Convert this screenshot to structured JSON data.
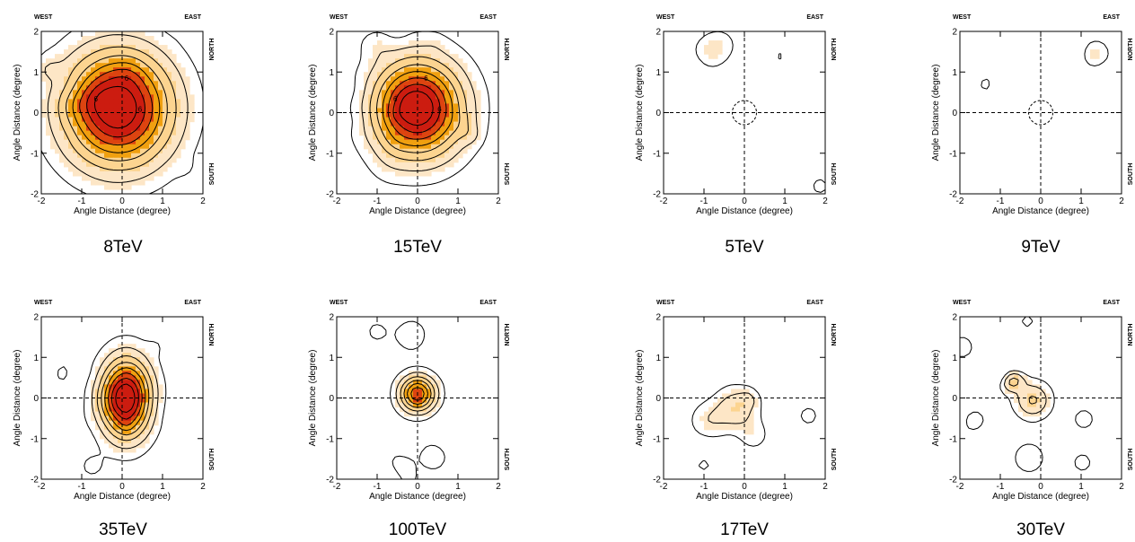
{
  "panel_text": {
    "west": "WEST",
    "east": "EAST",
    "north": "NORTH",
    "south": "SOUTH",
    "xlabel": "Angle Distance (degree)",
    "ylabel": "Angle Distance (degree)",
    "ticks": [
      "-2",
      "-1",
      "0",
      "1",
      "2"
    ]
  },
  "colors": {
    "dark_red": "#cc1c10",
    "red": "#dd4410",
    "orange": "#f0a010",
    "light_orange": "#fcd490",
    "peach": "#fde6c6",
    "contour": "#000000",
    "guide": "#000000"
  },
  "chart_data": [
    {
      "type": "heatmap",
      "caption": "8TeV",
      "xlim": [
        -2,
        2
      ],
      "ylim": [
        -2,
        2
      ],
      "peak": {
        "x": -0.1,
        "y": 0.1
      },
      "level": 1.0,
      "spread": [
        0.9,
        0.95
      ],
      "contour_labels": [
        "6",
        "6",
        "6"
      ],
      "noise": 0.12,
      "noise_seed": 3
    },
    {
      "type": "heatmap",
      "caption": "15TeV",
      "xlim": [
        -2,
        2
      ],
      "ylim": [
        -2,
        2
      ],
      "peak": {
        "x": 0.0,
        "y": 0.1
      },
      "level": 1.0,
      "spread": [
        0.75,
        0.8
      ],
      "contour_labels": [
        "6",
        "6",
        "6"
      ],
      "noise": 0.12,
      "noise_seed": 7
    },
    {
      "type": "heatmap",
      "caption": "5TeV",
      "xlim": [
        -2,
        2
      ],
      "ylim": [
        -2,
        2
      ],
      "peak": {
        "x": 0.0,
        "y": 0.0
      },
      "level": 0.0,
      "spread": [
        0.6,
        0.6
      ],
      "contour_labels": [],
      "noise": 0.22,
      "noise_seed": 11,
      "circle": {
        "x": 0,
        "y": 0,
        "r": 0.3
      }
    },
    {
      "type": "heatmap",
      "caption": "9TeV",
      "xlim": [
        -2,
        2
      ],
      "ylim": [
        -2,
        2
      ],
      "peak": {
        "x": 0.0,
        "y": 0.0
      },
      "level": 0.0,
      "spread": [
        0.6,
        0.6
      ],
      "contour_labels": [],
      "noise": 0.26,
      "noise_seed": 19,
      "circle": {
        "x": 0,
        "y": 0,
        "r": 0.3
      }
    },
    {
      "type": "heatmap",
      "caption": "35TeV",
      "xlim": [
        -2,
        2
      ],
      "ylim": [
        -2,
        2
      ],
      "peak": {
        "x": 0.1,
        "y": 0.0
      },
      "level": 1.0,
      "spread": [
        0.42,
        0.65
      ],
      "contour_labels": [],
      "noise": 0.14,
      "noise_seed": 23
    },
    {
      "type": "heatmap",
      "caption": "100TeV",
      "xlim": [
        -2,
        2
      ],
      "ylim": [
        -2,
        2
      ],
      "peak": {
        "x": 0.0,
        "y": 0.1
      },
      "level": 0.75,
      "spread": [
        0.3,
        0.3
      ],
      "contour_labels": [],
      "noise": 0.22,
      "noise_seed": 29
    },
    {
      "type": "heatmap",
      "caption": "17TeV",
      "xlim": [
        -2,
        2
      ],
      "ylim": [
        -2,
        2
      ],
      "peak": {
        "x": -0.2,
        "y": -0.25
      },
      "level": 0.25,
      "spread": [
        0.35,
        0.35
      ],
      "contour_labels": [],
      "noise": 0.24,
      "noise_seed": 31
    },
    {
      "type": "heatmap",
      "caption": "30TeV",
      "xlim": [
        -2,
        2
      ],
      "ylim": [
        -2,
        2
      ],
      "peak": {
        "x": -0.2,
        "y": -0.05
      },
      "level": 0.3,
      "spread": [
        0.3,
        0.3
      ],
      "contour_labels": [],
      "noise": 0.24,
      "noise_seed": 37
    }
  ]
}
